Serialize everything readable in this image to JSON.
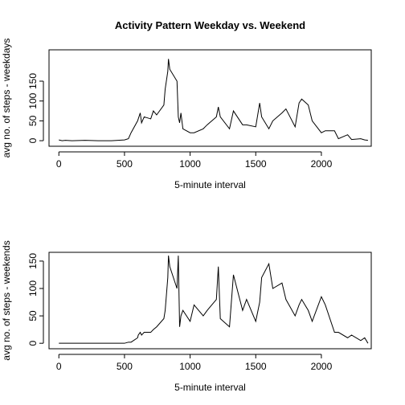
{
  "chart_data": [
    {
      "type": "line",
      "title": "Activity Pattern Weekday vs. Weekend",
      "xlabel": "5-minute interval",
      "ylabel": "avg no. of steps - weekdays",
      "x": [
        0,
        25,
        50,
        100,
        200,
        300,
        400,
        500,
        530,
        550,
        600,
        605,
        620,
        630,
        650,
        700,
        720,
        745,
        800,
        810,
        830,
        835,
        845,
        900,
        910,
        920,
        930,
        945,
        1000,
        1030,
        1100,
        1130,
        1200,
        1215,
        1230,
        1300,
        1330,
        1400,
        1430,
        1500,
        1530,
        1545,
        1600,
        1630,
        1700,
        1730,
        1800,
        1830,
        1850,
        1900,
        1930,
        2000,
        2030,
        2100,
        2130,
        2200,
        2230,
        2300,
        2330,
        2355
      ],
      "series": [
        {
          "name": "weekdays",
          "color": "#000000",
          "values": [
            2,
            0,
            1,
            0,
            1,
            0,
            0,
            2,
            5,
            20,
            50,
            55,
            70,
            45,
            60,
            55,
            75,
            65,
            90,
            130,
            175,
            206,
            180,
            150,
            60,
            45,
            70,
            30,
            20,
            20,
            30,
            40,
            60,
            85,
            60,
            30,
            75,
            40,
            40,
            35,
            95,
            60,
            30,
            50,
            70,
            80,
            35,
            95,
            105,
            90,
            50,
            20,
            25,
            25,
            5,
            15,
            3,
            5,
            2,
            1
          ]
        }
      ],
      "xlim": [
        -75,
        2380
      ],
      "xticks": [
        0,
        500,
        1000,
        1500,
        2000
      ],
      "ylim": [
        -14,
        229
      ],
      "yticks": [
        0,
        50,
        100,
        150
      ]
    },
    {
      "type": "line",
      "xlabel": "5-minute interval",
      "ylabel": "avg no. of steps - weekends",
      "x": [
        0,
        25,
        50,
        100,
        200,
        300,
        400,
        500,
        530,
        550,
        600,
        605,
        620,
        630,
        650,
        700,
        720,
        745,
        800,
        810,
        830,
        835,
        845,
        900,
        910,
        920,
        930,
        945,
        1000,
        1030,
        1100,
        1130,
        1200,
        1215,
        1230,
        1300,
        1330,
        1400,
        1430,
        1500,
        1530,
        1545,
        1600,
        1630,
        1700,
        1730,
        1800,
        1830,
        1850,
        1900,
        1930,
        2000,
        2030,
        2100,
        2130,
        2200,
        2230,
        2300,
        2330,
        2355
      ],
      "series": [
        {
          "name": "weekends",
          "color": "#000000",
          "values": [
            0,
            0,
            0,
            0,
            0,
            0,
            0,
            0,
            2,
            2,
            10,
            15,
            20,
            15,
            20,
            20,
            25,
            30,
            45,
            60,
            120,
            160,
            140,
            100,
            160,
            30,
            50,
            60,
            40,
            70,
            50,
            60,
            80,
            140,
            45,
            30,
            125,
            60,
            80,
            40,
            75,
            120,
            145,
            100,
            110,
            80,
            50,
            70,
            80,
            60,
            40,
            85,
            70,
            20,
            20,
            10,
            15,
            5,
            10,
            0
          ]
        }
      ],
      "xlim": [
        -75,
        2380
      ],
      "xticks": [
        0,
        500,
        1000,
        1500,
        2000
      ],
      "ylim": [
        -10,
        166
      ],
      "yticks": [
        0,
        50,
        100,
        150
      ]
    }
  ]
}
